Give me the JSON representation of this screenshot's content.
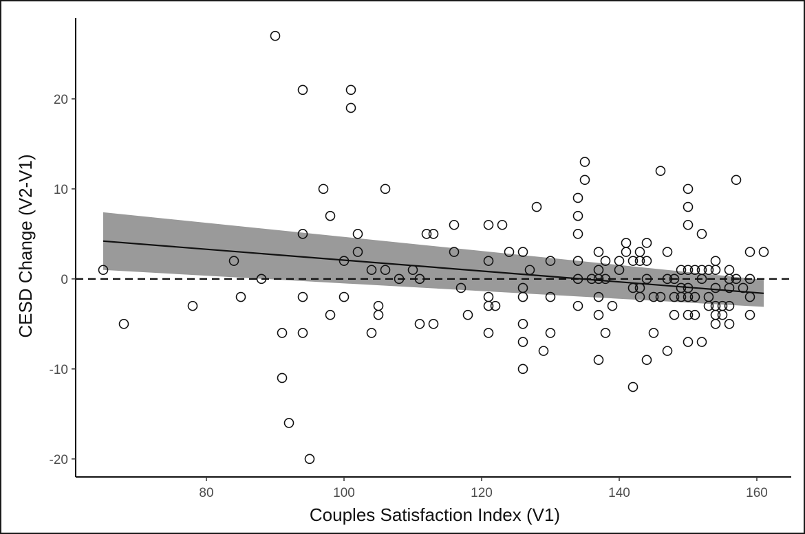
{
  "chart_data": {
    "type": "scatter",
    "xlabel": "Couples Satisfaction Index (V1)",
    "ylabel": "CESD Change (V2-V1)",
    "xlim": [
      61,
      165
    ],
    "ylim": [
      -22,
      29
    ],
    "x_ticks": [
      80,
      100,
      120,
      140,
      160
    ],
    "y_ticks": [
      -20,
      -10,
      0,
      10,
      20
    ],
    "reference_line": {
      "y": 0,
      "style": "dashed"
    },
    "regression": {
      "x": [
        65,
        161
      ],
      "y": [
        4.2,
        -1.6
      ],
      "ci_upper": [
        7.4,
        -0.1
      ],
      "ci_lower": [
        1.0,
        -3.1
      ]
    },
    "points": [
      [
        65,
        1
      ],
      [
        68,
        -5
      ],
      [
        78,
        -3
      ],
      [
        84,
        2
      ],
      [
        85,
        -2
      ],
      [
        88,
        0
      ],
      [
        90,
        27
      ],
      [
        91,
        -6
      ],
      [
        91,
        -11
      ],
      [
        92,
        -16
      ],
      [
        94,
        21
      ],
      [
        94,
        5
      ],
      [
        94,
        -2
      ],
      [
        94,
        -6
      ],
      [
        95,
        -20
      ],
      [
        97,
        10
      ],
      [
        98,
        7
      ],
      [
        98,
        -4
      ],
      [
        100,
        2
      ],
      [
        100,
        -2
      ],
      [
        101,
        21
      ],
      [
        101,
        19
      ],
      [
        102,
        5
      ],
      [
        102,
        3
      ],
      [
        104,
        1
      ],
      [
        104,
        -6
      ],
      [
        105,
        -3
      ],
      [
        105,
        -4
      ],
      [
        106,
        10
      ],
      [
        106,
        1
      ],
      [
        108,
        0
      ],
      [
        110,
        1
      ],
      [
        111,
        0
      ],
      [
        111,
        -5
      ],
      [
        112,
        5
      ],
      [
        113,
        5
      ],
      [
        113,
        -5
      ],
      [
        116,
        6
      ],
      [
        116,
        3
      ],
      [
        117,
        -1
      ],
      [
        118,
        -4
      ],
      [
        121,
        6
      ],
      [
        121,
        2
      ],
      [
        121,
        -2
      ],
      [
        121,
        -3
      ],
      [
        121,
        -6
      ],
      [
        122,
        -3
      ],
      [
        123,
        6
      ],
      [
        124,
        3
      ],
      [
        126,
        3
      ],
      [
        126,
        -1
      ],
      [
        126,
        -2
      ],
      [
        126,
        -5
      ],
      [
        126,
        -7
      ],
      [
        126,
        -10
      ],
      [
        127,
        1
      ],
      [
        128,
        8
      ],
      [
        129,
        -8
      ],
      [
        130,
        2
      ],
      [
        130,
        -2
      ],
      [
        130,
        -6
      ],
      [
        134,
        9
      ],
      [
        134,
        7
      ],
      [
        134,
        5
      ],
      [
        134,
        2
      ],
      [
        134,
        0
      ],
      [
        134,
        -3
      ],
      [
        135,
        13
      ],
      [
        135,
        11
      ],
      [
        136,
        0
      ],
      [
        137,
        3
      ],
      [
        137,
        1
      ],
      [
        137,
        0
      ],
      [
        137,
        -2
      ],
      [
        137,
        -4
      ],
      [
        137,
        -9
      ],
      [
        138,
        2
      ],
      [
        138,
        0
      ],
      [
        138,
        -6
      ],
      [
        139,
        -3
      ],
      [
        140,
        2
      ],
      [
        140,
        1
      ],
      [
        141,
        4
      ],
      [
        141,
        3
      ],
      [
        142,
        2
      ],
      [
        142,
        -1
      ],
      [
        142,
        -12
      ],
      [
        143,
        3
      ],
      [
        143,
        2
      ],
      [
        143,
        -1
      ],
      [
        143,
        -2
      ],
      [
        144,
        4
      ],
      [
        144,
        2
      ],
      [
        144,
        0
      ],
      [
        144,
        -9
      ],
      [
        145,
        -2
      ],
      [
        145,
        -6
      ],
      [
        146,
        12
      ],
      [
        146,
        -2
      ],
      [
        147,
        3
      ],
      [
        147,
        0
      ],
      [
        147,
        -8
      ],
      [
        148,
        0
      ],
      [
        148,
        -2
      ],
      [
        148,
        -4
      ],
      [
        149,
        1
      ],
      [
        149,
        -1
      ],
      [
        149,
        -2
      ],
      [
        150,
        10
      ],
      [
        150,
        8
      ],
      [
        150,
        6
      ],
      [
        150,
        1
      ],
      [
        150,
        -1
      ],
      [
        150,
        -2
      ],
      [
        150,
        -4
      ],
      [
        150,
        -7
      ],
      [
        151,
        1
      ],
      [
        151,
        -2
      ],
      [
        151,
        -4
      ],
      [
        152,
        5
      ],
      [
        152,
        1
      ],
      [
        152,
        0
      ],
      [
        152,
        -7
      ],
      [
        153,
        1
      ],
      [
        153,
        -2
      ],
      [
        153,
        -3
      ],
      [
        154,
        2
      ],
      [
        154,
        1
      ],
      [
        154,
        -1
      ],
      [
        154,
        -3
      ],
      [
        154,
        -4
      ],
      [
        154,
        -5
      ],
      [
        155,
        -3
      ],
      [
        155,
        -4
      ],
      [
        156,
        1
      ],
      [
        156,
        0
      ],
      [
        156,
        -1
      ],
      [
        156,
        -3
      ],
      [
        156,
        -5
      ],
      [
        157,
        11
      ],
      [
        157,
        0
      ],
      [
        158,
        -1
      ],
      [
        159,
        3
      ],
      [
        159,
        0
      ],
      [
        159,
        -2
      ],
      [
        159,
        -4
      ],
      [
        161,
        3
      ]
    ]
  }
}
